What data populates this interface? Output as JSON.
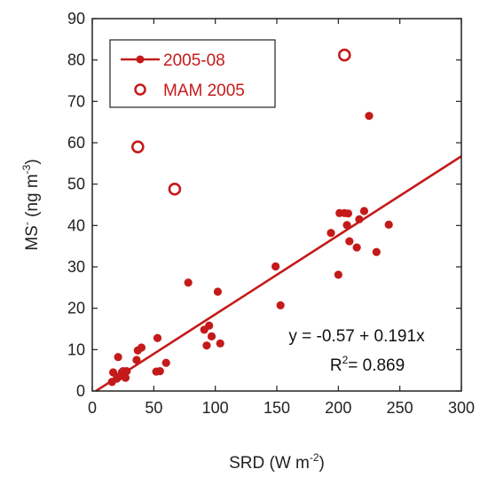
{
  "chart_data": {
    "type": "scatter",
    "xlabel": {
      "main": "SRD (W m",
      "sup": "-2",
      "end": ")"
    },
    "ylabel": {
      "main": "MS",
      "sup_ion": "-",
      "mid": " (ng m",
      "sup": "-3",
      "end": ")"
    },
    "xlim": [
      0,
      300
    ],
    "ylim": [
      0,
      90
    ],
    "xticks": [
      0,
      50,
      100,
      150,
      200,
      250,
      300
    ],
    "yticks": [
      0,
      10,
      20,
      30,
      40,
      50,
      60,
      70,
      80,
      90
    ],
    "colors": {
      "series": "#c41a1a",
      "axis": "#222222"
    },
    "series": [
      {
        "name": "2005-08",
        "marker": "filled-circle",
        "x": [
          16,
          17,
          20,
          21,
          22,
          24,
          25,
          27,
          28,
          36,
          37,
          40,
          52,
          53,
          55,
          60,
          78,
          91,
          93,
          95,
          97,
          102,
          104,
          149,
          153,
          194,
          200,
          201,
          205,
          207,
          208,
          209,
          215,
          217,
          221,
          225,
          231,
          241
        ],
        "y": [
          2.2,
          4.5,
          3.0,
          8.2,
          3.5,
          4.5,
          4.8,
          3.2,
          4.8,
          7.5,
          9.8,
          10.5,
          4.7,
          12.8,
          4.8,
          6.8,
          26.2,
          14.8,
          11.0,
          15.8,
          13.2,
          24.0,
          11.5,
          30.1,
          20.7,
          38.2,
          28.1,
          43.0,
          43.0,
          40.1,
          42.9,
          36.2,
          34.7,
          41.5,
          43.5,
          66.5,
          33.6,
          40.2
        ]
      },
      {
        "name": "MAM 2005",
        "marker": "open-circle",
        "x": [
          37,
          67,
          205
        ],
        "y": [
          59.0,
          48.8,
          81.2
        ]
      }
    ],
    "fit": {
      "intercept": -0.57,
      "slope": 0.191,
      "x_range": [
        0,
        300
      ]
    },
    "annotations": {
      "equation": "y = -0.57 + 0.191x",
      "r2_label": "R",
      "r2_sup": "2",
      "r2_value": "= 0.869"
    },
    "legend": {
      "placement": "top-left"
    }
  }
}
